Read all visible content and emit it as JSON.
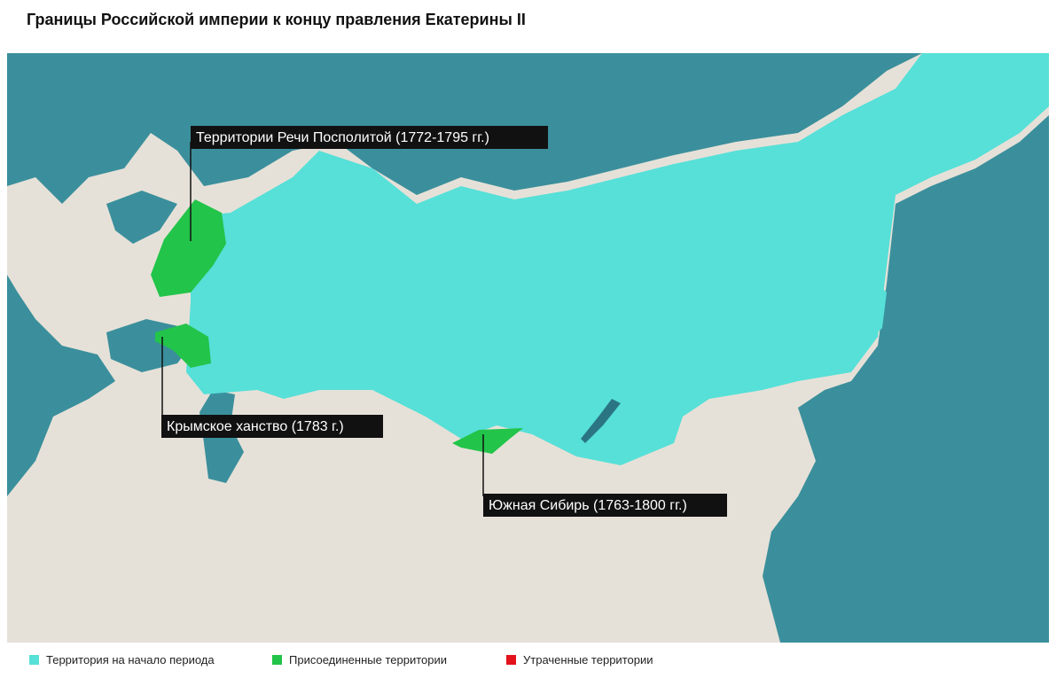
{
  "title": "Границы Российской империи к концу правления Екатерины II",
  "annotations": [
    "Территории Речи Посполитой (1772-1795 гг.)",
    "Крымское ханство (1783 г.)",
    "Южная Сибирь (1763-1800 гг.)"
  ],
  "legend": [
    {
      "label": "Территория на начало периода",
      "color": "#56e0d8"
    },
    {
      "label": "Присоединенные территории",
      "color": "#22c44a"
    },
    {
      "label": "Утраченные территории",
      "color": "#e3121b"
    }
  ]
}
